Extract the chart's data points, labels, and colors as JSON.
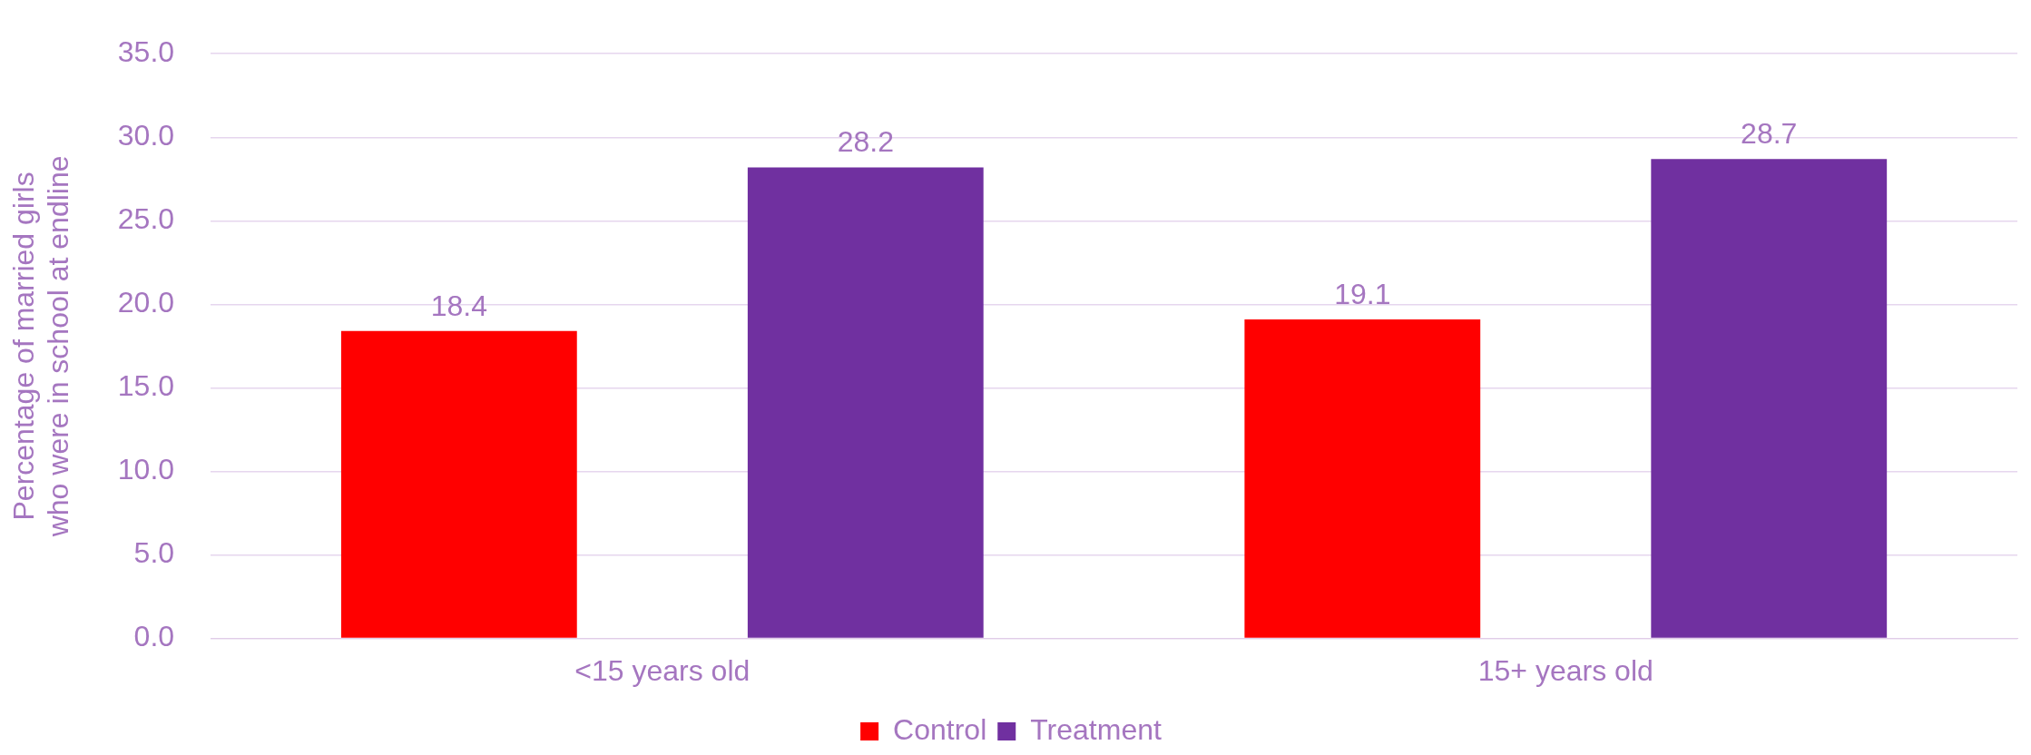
{
  "chart_data": {
    "type": "bar",
    "ylabel": "Percentage of married girls who were in school at endline",
    "categories": [
      "<15 years old",
      "15+ years old"
    ],
    "series": [
      {
        "name": "Control",
        "color": "#ff0000",
        "values": [
          18.4,
          19.1
        ]
      },
      {
        "name": "Treatment",
        "color": "#7030a0",
        "values": [
          28.2,
          28.7
        ]
      }
    ],
    "ylim": [
      0,
      35
    ],
    "yticks": [
      {
        "value": 0,
        "label": "0.0"
      },
      {
        "value": 5,
        "label": "5.0"
      },
      {
        "value": 10,
        "label": "10.0"
      },
      {
        "value": 15,
        "label": "15.0"
      },
      {
        "value": 20,
        "label": "20.0"
      },
      {
        "value": 25,
        "label": "25.0"
      },
      {
        "value": 30,
        "label": "30.0"
      },
      {
        "value": 35,
        "label": "35.0"
      }
    ],
    "grid": "y",
    "legend": "bottom",
    "data_labels": true
  }
}
